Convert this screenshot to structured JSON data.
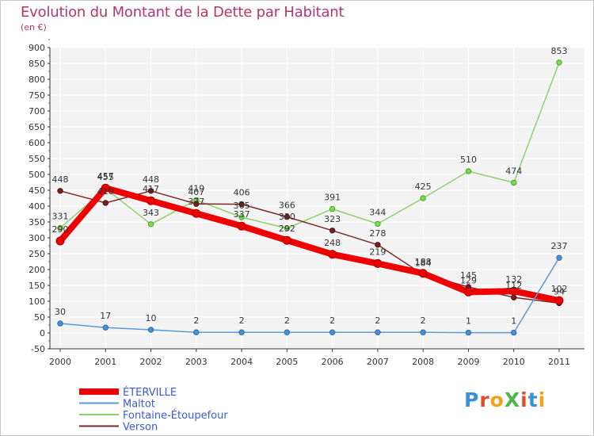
{
  "header": {
    "title": "Evolution du Montant de la Dette par Habitant",
    "subtitle": "(en €)"
  },
  "logo": {
    "text": "ProXiti",
    "colors": [
      "#3b8fd6",
      "#e34b2c",
      "#f2a218",
      "#52b549",
      "#e34b2c",
      "#3b8fd6",
      "#f2a218"
    ]
  },
  "chart_data": {
    "type": "line",
    "title": "Evolution du Montant de la Dette par Habitant",
    "subtitle": "(en €)",
    "xlabel": "",
    "ylabel": "",
    "x": [
      "2000",
      "2001",
      "2002",
      "2003",
      "2004",
      "2005",
      "2006",
      "2007",
      "2008",
      "2009",
      "2010",
      "2011"
    ],
    "yticks": [
      "900",
      "850",
      "800",
      "750",
      "700",
      "650",
      "600",
      "550",
      "500",
      "450",
      "400",
      "350",
      "300",
      "250",
      "200",
      "150",
      "100",
      "50",
      "0",
      "-50"
    ],
    "ylim": [
      -50,
      900
    ],
    "grid": true,
    "legend_position": "bottom-left",
    "series": [
      {
        "name": "ÉTERVILLE",
        "color": "#ee0000",
        "values": [
          290,
          457,
          417,
          377,
          337,
          292,
          248,
          219,
          188,
          129,
          132,
          102
        ]
      },
      {
        "name": "Maltot",
        "color": "#5b9bd5",
        "values": [
          30,
          17,
          10,
          2,
          2,
          2,
          2,
          2,
          2,
          1,
          1,
          237
        ]
      },
      {
        "name": "Fontaine-Étoupefour",
        "color": "#8fd16b",
        "values": [
          331,
          455,
          343,
          419,
          365,
          330,
          391,
          344,
          425,
          510,
          474,
          853
        ]
      },
      {
        "name": "Verson",
        "color": "#7a2a2a",
        "values": [
          448,
          410,
          448,
          407,
          406,
          366,
          323,
          278,
          184,
          145,
          112,
          94
        ]
      }
    ]
  }
}
